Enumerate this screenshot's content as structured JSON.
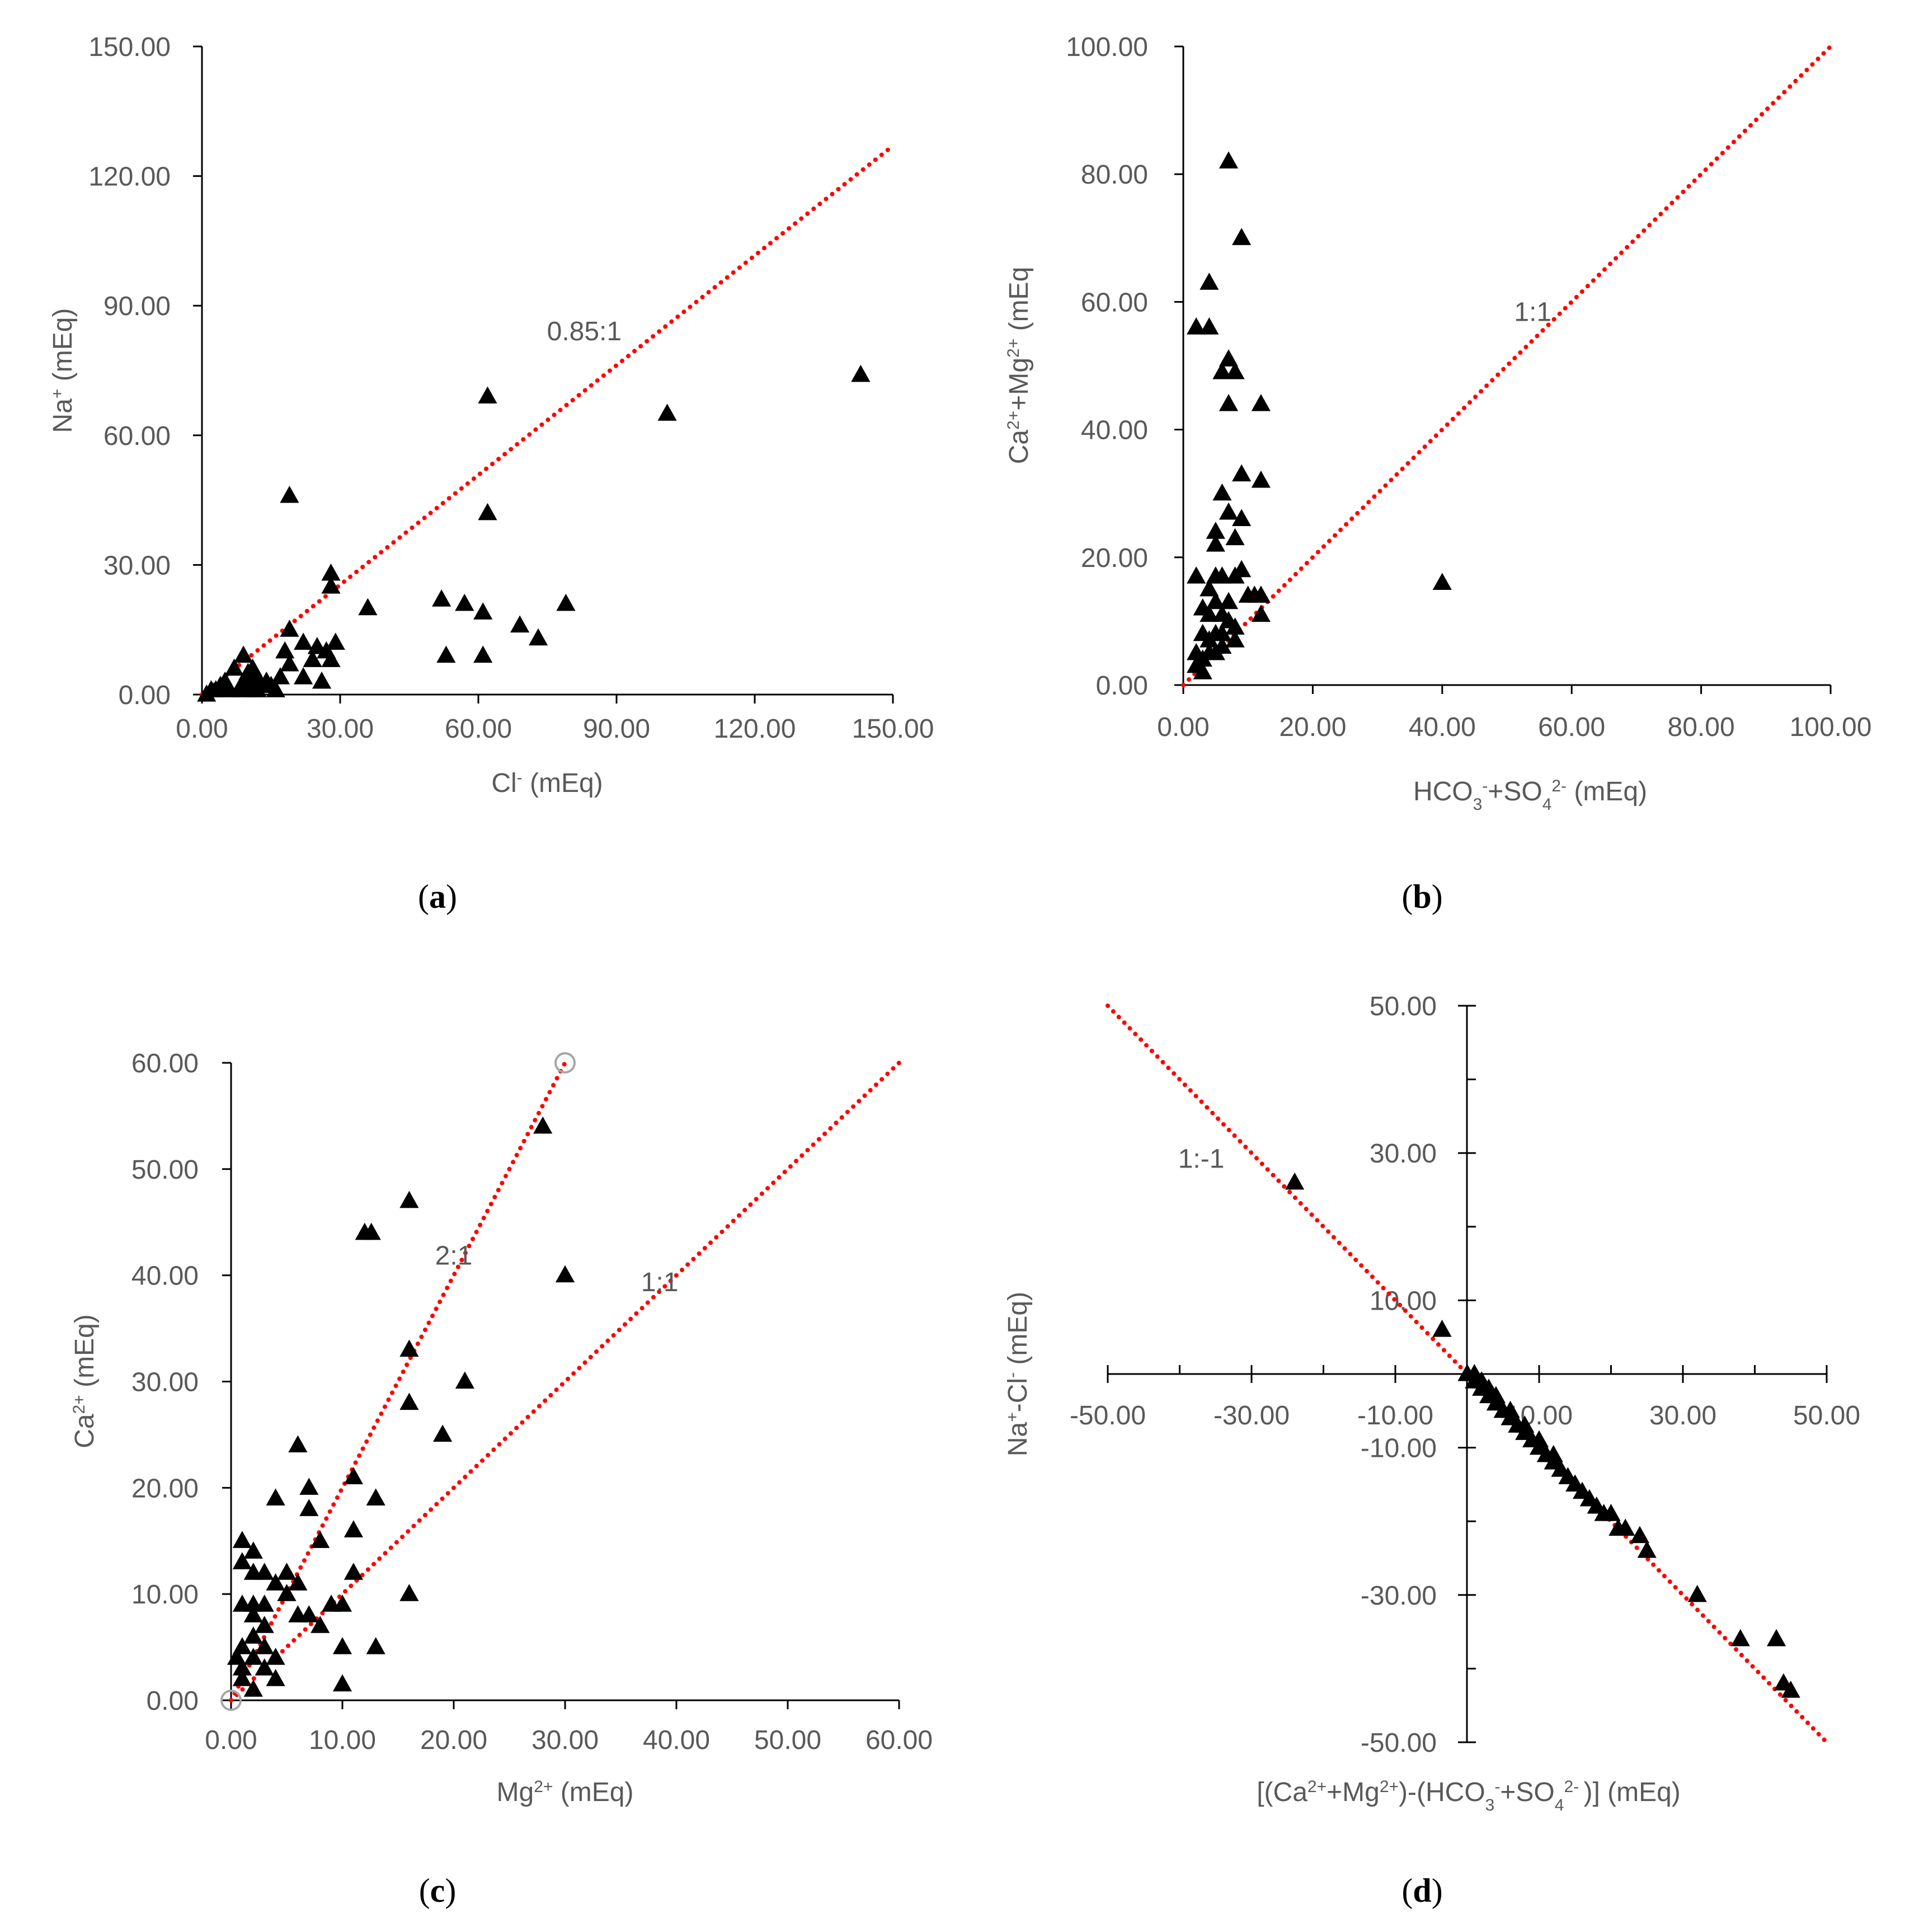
{
  "colors": {
    "points": "#000000",
    "ref_line": "#ff0000",
    "text": "#595959",
    "hollow_marker": "#a6a6a6"
  },
  "chart_data": [
    {
      "id": "a",
      "type": "scatter",
      "marker": "triangle-icon",
      "panel_label": "a",
      "xlabel": {
        "pre": "Cl",
        "sup": "-",
        "post": " (mEq)"
      },
      "ylabel": {
        "pre": "Na",
        "sup": "+",
        "post": " (mEq)"
      },
      "xlim": [
        0,
        150
      ],
      "ylim": [
        0,
        150
      ],
      "xticks": [
        "0.00",
        "30.00",
        "60.00",
        "90.00",
        "120.00",
        "150.00"
      ],
      "yticks": [
        "0.00",
        "30.00",
        "60.00",
        "90.00",
        "120.00",
        "150.00"
      ],
      "reference_lines": [
        {
          "label": "0.85:1",
          "x": [
            0,
            150
          ],
          "y": [
            0,
            127
          ],
          "label_at": [
            83,
            82
          ]
        }
      ],
      "points": [
        [
          19,
          46
        ],
        [
          28,
          28
        ],
        [
          28,
          25
        ],
        [
          62,
          69
        ],
        [
          62,
          42
        ],
        [
          101,
          65
        ],
        [
          143,
          74
        ],
        [
          36,
          20
        ],
        [
          52,
          22
        ],
        [
          57,
          21
        ],
        [
          61,
          19
        ],
        [
          53,
          9
        ],
        [
          61,
          9
        ],
        [
          69,
          16
        ],
        [
          73,
          13
        ],
        [
          79,
          21
        ],
        [
          19,
          15
        ],
        [
          22,
          12
        ],
        [
          25,
          11
        ],
        [
          29,
          12
        ],
        [
          27,
          10
        ],
        [
          24,
          8
        ],
        [
          19,
          7
        ],
        [
          17,
          4
        ],
        [
          22,
          4
        ],
        [
          26,
          3
        ],
        [
          28,
          8
        ],
        [
          18,
          10
        ],
        [
          9,
          9
        ],
        [
          7,
          6
        ],
        [
          10,
          5
        ],
        [
          12,
          4
        ],
        [
          14,
          3
        ],
        [
          5,
          3
        ],
        [
          4,
          2
        ],
        [
          3,
          1
        ],
        [
          6,
          1
        ],
        [
          8,
          1
        ],
        [
          11,
          1
        ],
        [
          13,
          2
        ],
        [
          15,
          2
        ],
        [
          16,
          1
        ],
        [
          2,
          1
        ],
        [
          1,
          0
        ],
        [
          9,
          3
        ],
        [
          11,
          6
        ],
        [
          10,
          2
        ],
        [
          12,
          1
        ]
      ]
    },
    {
      "id": "b",
      "type": "scatter",
      "marker": "triangle-icon",
      "panel_label": "b",
      "xlabel_parts": [
        [
          "HCO",
          "n"
        ],
        [
          "3",
          "sub"
        ],
        [
          "-",
          "sup"
        ],
        [
          "+SO",
          "n"
        ],
        [
          "4",
          "sub"
        ],
        [
          "2-",
          "sup"
        ],
        [
          " (mEq)",
          "n"
        ]
      ],
      "ylabel_parts": [
        [
          "Ca",
          "n"
        ],
        [
          "2+",
          "sup"
        ],
        [
          "+Mg",
          "n"
        ],
        [
          "2+",
          "sup"
        ],
        [
          " (mEq",
          "n"
        ]
      ],
      "xlim": [
        0,
        100
      ],
      "ylim": [
        0,
        100
      ],
      "xticks": [
        "0.00",
        "20.00",
        "40.00",
        "60.00",
        "80.00",
        "100.00"
      ],
      "yticks": [
        "0.00",
        "20.00",
        "40.00",
        "60.00",
        "80.00",
        "100.00"
      ],
      "reference_lines": [
        {
          "label": "1:1",
          "x": [
            0,
            100
          ],
          "y": [
            0,
            100
          ],
          "label_at": [
            54,
            57
          ]
        }
      ],
      "points": [
        [
          7,
          82
        ],
        [
          9,
          70
        ],
        [
          4,
          63
        ],
        [
          2,
          56
        ],
        [
          4,
          56
        ],
        [
          7,
          51
        ],
        [
          8,
          49
        ],
        [
          6,
          49
        ],
        [
          7,
          44
        ],
        [
          12,
          44
        ],
        [
          9,
          33
        ],
        [
          12,
          32
        ],
        [
          6,
          30
        ],
        [
          9,
          26
        ],
        [
          7,
          27
        ],
        [
          8,
          23
        ],
        [
          5,
          24
        ],
        [
          5,
          22
        ],
        [
          2,
          17
        ],
        [
          5,
          17
        ],
        [
          6,
          17
        ],
        [
          8,
          17
        ],
        [
          9,
          18
        ],
        [
          11,
          14
        ],
        [
          12,
          14
        ],
        [
          12,
          11
        ],
        [
          40,
          16
        ],
        [
          4,
          15
        ],
        [
          5,
          13
        ],
        [
          3,
          12
        ],
        [
          4,
          11
        ],
        [
          6,
          11
        ],
        [
          7,
          10
        ],
        [
          8,
          9
        ],
        [
          3,
          8
        ],
        [
          5,
          8
        ],
        [
          4,
          7
        ],
        [
          6,
          6
        ],
        [
          2,
          5
        ],
        [
          3,
          4
        ],
        [
          4,
          5
        ],
        [
          5,
          5
        ],
        [
          6,
          8
        ],
        [
          2,
          3
        ],
        [
          3,
          2
        ],
        [
          8,
          7
        ],
        [
          10,
          14
        ],
        [
          7,
          13
        ]
      ]
    },
    {
      "id": "c",
      "type": "scatter",
      "marker": "triangle-icon",
      "panel_label": "c",
      "xlabel_parts": [
        [
          "Mg",
          "n"
        ],
        [
          "2+",
          "sup"
        ],
        [
          " (mEq)",
          "n"
        ]
      ],
      "ylabel_parts": [
        [
          "Ca",
          "n"
        ],
        [
          "2+",
          "sup"
        ],
        [
          " (mEq)",
          "n"
        ]
      ],
      "xlim": [
        0,
        60
      ],
      "ylim": [
        0,
        60
      ],
      "xticks": [
        "0.00",
        "10.00",
        "20.00",
        "30.00",
        "40.00",
        "50.00",
        "60.00"
      ],
      "yticks": [
        "0.00",
        "10.00",
        "20.00",
        "30.00",
        "40.00",
        "50.00",
        "60.00"
      ],
      "reference_lines": [
        {
          "label": "2:1",
          "x": [
            0,
            30
          ],
          "y": [
            0,
            60
          ],
          "label_at": [
            20,
            41
          ]
        },
        {
          "label": "1:1",
          "x": [
            0,
            60
          ],
          "y": [
            0,
            60
          ],
          "label_at": [
            38.5,
            38.5
          ]
        }
      ],
      "hollow_markers": [
        [
          0,
          0
        ],
        [
          30,
          60
        ]
      ],
      "points": [
        [
          28,
          54
        ],
        [
          16,
          47
        ],
        [
          12,
          44
        ],
        [
          12.6,
          44
        ],
        [
          30,
          40
        ],
        [
          16,
          33
        ],
        [
          16,
          28
        ],
        [
          21,
          30
        ],
        [
          19,
          25
        ],
        [
          13,
          19
        ],
        [
          11,
          21
        ],
        [
          6,
          24
        ],
        [
          7,
          20
        ],
        [
          7,
          18
        ],
        [
          8,
          15
        ],
        [
          11,
          16
        ],
        [
          11,
          12
        ],
        [
          16,
          10
        ],
        [
          13,
          5
        ],
        [
          10,
          5
        ],
        [
          10,
          1.5
        ],
        [
          4,
          19
        ],
        [
          1,
          15
        ],
        [
          2,
          14
        ],
        [
          1,
          13
        ],
        [
          2,
          12
        ],
        [
          3,
          12
        ],
        [
          4,
          11
        ],
        [
          5,
          12
        ],
        [
          6,
          11
        ],
        [
          5,
          10
        ],
        [
          7,
          8
        ],
        [
          8,
          7
        ],
        [
          9,
          9
        ],
        [
          10,
          9
        ],
        [
          1,
          9
        ],
        [
          2,
          8
        ],
        [
          3,
          7
        ],
        [
          2,
          6
        ],
        [
          1,
          5
        ],
        [
          2,
          4
        ],
        [
          3,
          3
        ],
        [
          4,
          2
        ],
        [
          1,
          2
        ],
        [
          2,
          1
        ],
        [
          3,
          5
        ],
        [
          4,
          4
        ],
        [
          6,
          8
        ],
        [
          0.5,
          4
        ],
        [
          1,
          3
        ],
        [
          2,
          9
        ],
        [
          3,
          9
        ]
      ]
    },
    {
      "id": "d",
      "type": "scatter",
      "marker": "triangle-icon",
      "panel_label": "d",
      "xlabel_parts": [
        [
          "[(Ca",
          "n"
        ],
        [
          "2+",
          "sup"
        ],
        [
          "+Mg",
          "n"
        ],
        [
          "2+",
          "sup"
        ],
        [
          ")-(HCO",
          "n"
        ],
        [
          "3",
          "sub"
        ],
        [
          "-",
          "sup"
        ],
        [
          "+SO",
          "n"
        ],
        [
          "4",
          "sub"
        ],
        [
          "2- ",
          "sup"
        ],
        [
          ")] (mEq)",
          "n"
        ]
      ],
      "ylabel_parts": [
        [
          "Na",
          "n"
        ],
        [
          "+",
          "sup"
        ],
        [
          "-Cl",
          "n"
        ],
        [
          "-",
          "sup"
        ],
        [
          "  (mEq)",
          "n"
        ]
      ],
      "xlim": [
        -50,
        50
      ],
      "ylim": [
        -50,
        50
      ],
      "xticks": [
        "-50.00",
        "-30.00",
        "-10.00",
        "10.00",
        "30.00",
        "50.00"
      ],
      "yticks": [
        "-50.00",
        "-30.00",
        "-10.00",
        "10.00",
        "30.00",
        "50.00"
      ],
      "reference_lines": [
        {
          "label": "1:-1",
          "x": [
            -50,
            50
          ],
          "y": [
            50,
            -50
          ],
          "label_at": [
            -37,
            28
          ]
        }
      ],
      "points": [
        [
          -24,
          26
        ],
        [
          -3.5,
          6
        ],
        [
          0,
          0
        ],
        [
          1,
          -1
        ],
        [
          2,
          -2
        ],
        [
          3,
          -3
        ],
        [
          4,
          -4
        ],
        [
          5,
          -5
        ],
        [
          6,
          -6
        ],
        [
          7,
          -7
        ],
        [
          8,
          -8
        ],
        [
          9,
          -9
        ],
        [
          10,
          -10
        ],
        [
          11,
          -11
        ],
        [
          12,
          -12
        ],
        [
          13,
          -13
        ],
        [
          15,
          -15
        ],
        [
          16,
          -16
        ],
        [
          17,
          -17
        ],
        [
          19,
          -19
        ],
        [
          20,
          -19
        ],
        [
          22,
          -21
        ],
        [
          24,
          -22
        ],
        [
          25,
          -24
        ],
        [
          32,
          -30
        ],
        [
          38,
          -36
        ],
        [
          43,
          -36
        ],
        [
          44,
          -42
        ],
        [
          45,
          -43
        ],
        [
          2,
          -1
        ],
        [
          3,
          -2
        ],
        [
          1,
          0
        ],
        [
          4,
          -3
        ],
        [
          6,
          -5
        ],
        [
          8,
          -7
        ],
        [
          10,
          -9
        ],
        [
          12,
          -11
        ],
        [
          14,
          -14
        ],
        [
          18,
          -18
        ],
        [
          21,
          -21
        ]
      ]
    }
  ]
}
